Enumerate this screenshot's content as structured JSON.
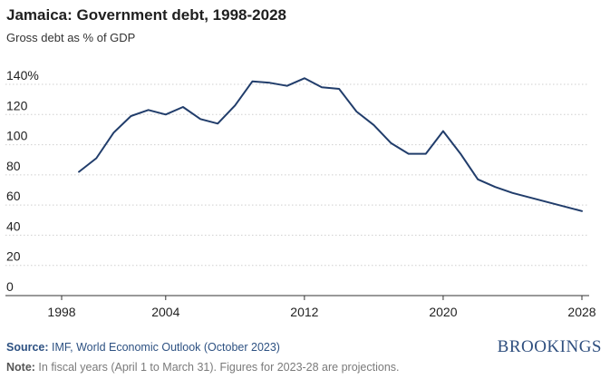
{
  "header": {
    "title": "Jamaica: Government debt, 1998-2028",
    "subtitle": "Gross debt as % of GDP"
  },
  "footer": {
    "source_label": "Source:",
    "source_text": " IMF, World Economic Outlook (October 2023)",
    "note_label": "Note:",
    "note_text": " In fiscal years (April 1 to March 31). Figures for 2023-28 are projections.",
    "brand": "BROOKINGS"
  },
  "colors": {
    "line": "#213d6b",
    "grid": "#cfcfcf",
    "axis": "#333333"
  },
  "chart_data": {
    "type": "line",
    "title": "Jamaica: Government debt, 1998-2028",
    "subtitle": "Gross debt as % of GDP",
    "xlabel": "",
    "ylabel": "",
    "xlim": [
      1998,
      2028
    ],
    "ylim": [
      0,
      140
    ],
    "x_ticks": [
      1998,
      2004,
      2012,
      2020,
      2028
    ],
    "y_ticks": [
      0,
      20,
      40,
      60,
      80,
      100,
      120,
      140
    ],
    "y_tick_labels": [
      "0",
      "20",
      "40",
      "60",
      "80",
      "100",
      "120",
      "140%"
    ],
    "grid": "horizontal-dotted",
    "series": [
      {
        "name": "Gross debt (% of GDP)",
        "x": [
          1999,
          2000,
          2001,
          2002,
          2003,
          2004,
          2005,
          2006,
          2007,
          2008,
          2009,
          2010,
          2011,
          2012,
          2013,
          2014,
          2015,
          2016,
          2017,
          2018,
          2019,
          2020,
          2021,
          2022,
          2023,
          2024,
          2025,
          2026,
          2027,
          2028
        ],
        "values": [
          82,
          91,
          108,
          119,
          123,
          120,
          125,
          117,
          114,
          126,
          142,
          141,
          139,
          144,
          138,
          137,
          122,
          113,
          101,
          94,
          94,
          109,
          94,
          77,
          72,
          68,
          65,
          62,
          59,
          56
        ]
      }
    ]
  }
}
